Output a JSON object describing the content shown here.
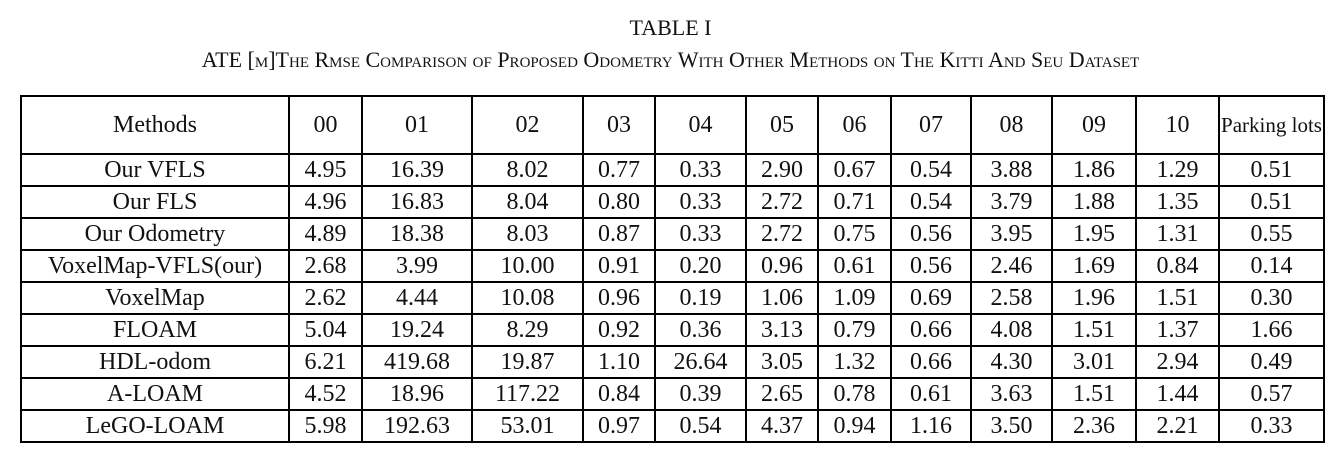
{
  "table_number": "TABLE I",
  "caption": "ATE [m]The Rmse Comparison of Proposed Odometry With Other Methods on The Kitti And Seu Dataset",
  "columns": [
    "Methods",
    "00",
    "01",
    "02",
    "03",
    "04",
    "05",
    "06",
    "07",
    "08",
    "09",
    "10",
    "Parking lots"
  ],
  "rows": [
    {
      "method": "Our VFLS",
      "values": [
        "4.95",
        "16.39",
        "8.02",
        "0.77",
        "0.33",
        "2.90",
        "0.67",
        "0.54",
        "3.88",
        "1.86",
        "1.29",
        "0.51"
      ],
      "bold": [
        false,
        false,
        true,
        true,
        false,
        false,
        false,
        true,
        false,
        false,
        false,
        false
      ]
    },
    {
      "method": "Our FLS",
      "values": [
        "4.96",
        "16.83",
        "8.04",
        "0.80",
        "0.33",
        "2.72",
        "0.71",
        "0.54",
        "3.79",
        "1.88",
        "1.35",
        "0.51"
      ],
      "bold": [
        false,
        false,
        false,
        false,
        false,
        false,
        false,
        false,
        false,
        false,
        false,
        false
      ]
    },
    {
      "method": "Our Odometry",
      "values": [
        "4.89",
        "18.38",
        "8.03",
        "0.87",
        "0.33",
        "2.72",
        "0.75",
        "0.56",
        "3.95",
        "1.95",
        "1.31",
        "0.55"
      ],
      "bold": [
        false,
        false,
        false,
        false,
        false,
        false,
        false,
        false,
        false,
        false,
        false,
        false
      ]
    },
    {
      "method": "VoxelMap-VFLS(our)",
      "values": [
        "2.68",
        "3.99",
        "10.00",
        "0.91",
        "0.20",
        "0.96",
        "0.61",
        "0.56",
        "2.46",
        "1.69",
        "0.84",
        "0.14"
      ],
      "bold": [
        false,
        true,
        false,
        false,
        false,
        true,
        true,
        false,
        true,
        false,
        true,
        true
      ]
    },
    {
      "method": "VoxelMap",
      "values": [
        "2.62",
        "4.44",
        "10.08",
        "0.96",
        "0.19",
        "1.06",
        "1.09",
        "0.69",
        "2.58",
        "1.96",
        "1.51",
        "0.30"
      ],
      "bold": [
        true,
        false,
        false,
        false,
        true,
        false,
        false,
        false,
        false,
        false,
        false,
        false
      ]
    },
    {
      "method": "FLOAM",
      "values": [
        "5.04",
        "19.24",
        "8.29",
        "0.92",
        "0.36",
        "3.13",
        "0.79",
        "0.66",
        "4.08",
        "1.51",
        "1.37",
        "1.66"
      ],
      "bold": [
        false,
        false,
        false,
        false,
        false,
        false,
        false,
        false,
        false,
        true,
        false,
        false
      ]
    },
    {
      "method": "HDL-odom",
      "values": [
        "6.21",
        "419.68",
        "19.87",
        "1.10",
        "26.64",
        "3.05",
        "1.32",
        "0.66",
        "4.30",
        "3.01",
        "2.94",
        "0.49"
      ],
      "bold": [
        false,
        false,
        false,
        false,
        false,
        false,
        false,
        false,
        false,
        false,
        false,
        false
      ]
    },
    {
      "method": "A-LOAM",
      "values": [
        "4.52",
        "18.96",
        "117.22",
        "0.84",
        "0.39",
        "2.65",
        "0.78",
        "0.61",
        "3.63",
        "1.51",
        "1.44",
        "0.57"
      ],
      "bold": [
        false,
        false,
        false,
        false,
        false,
        false,
        false,
        false,
        false,
        true,
        false,
        false
      ]
    },
    {
      "method": "LeGO-LOAM",
      "values": [
        "5.98",
        "192.63",
        "53.01",
        "0.97",
        "0.54",
        "4.37",
        "0.94",
        "1.16",
        "3.50",
        "2.36",
        "2.21",
        "0.33"
      ],
      "bold": [
        false,
        false,
        false,
        false,
        false,
        false,
        false,
        false,
        false,
        false,
        false,
        false
      ]
    }
  ]
}
